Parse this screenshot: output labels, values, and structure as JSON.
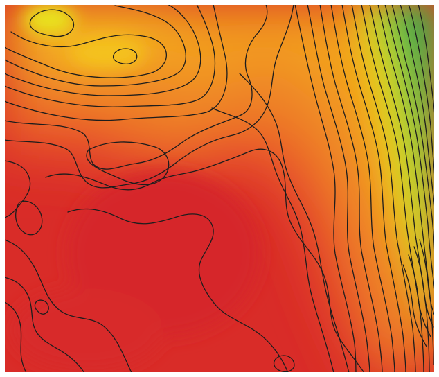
{
  "map": {
    "kind": "contour-heatmap",
    "colors": {
      "low": "#dc2a2a",
      "mid_low": "#e8552c",
      "mid": "#f08a22",
      "mid_high": "#f6b81a",
      "high": "#e6e118",
      "peak_yellow_green": "#b6d92a",
      "green": "#3cb04e",
      "deep_green": "#1f9a4d",
      "contour_line": "#1d1d1d",
      "border": "#ffffff"
    },
    "legend": null,
    "labels": []
  }
}
